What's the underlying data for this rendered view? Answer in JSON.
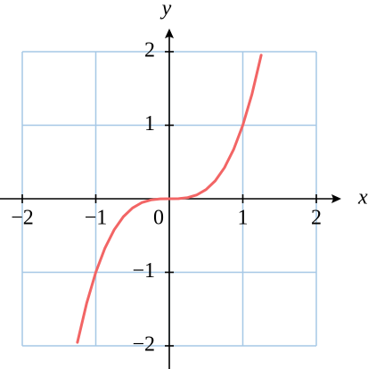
{
  "chart_data": {
    "type": "line",
    "xlabel": "x",
    "ylabel": "y",
    "xlim": [
      -2,
      2
    ],
    "ylim": [
      -2,
      2
    ],
    "xticks": [
      {
        "value": -2,
        "label": "−2"
      },
      {
        "value": -1,
        "label": "−1"
      },
      0,
      1,
      2
    ],
    "yticks": [
      {
        "value": -2,
        "label": "−2"
      },
      {
        "value": -1,
        "label": "−1"
      },
      1,
      2
    ],
    "grid": true,
    "x": [
      -1.25,
      -1.125,
      -1,
      -0.875,
      -0.75,
      -0.625,
      -0.5,
      -0.375,
      -0.25,
      -0.125,
      0,
      0.125,
      0.25,
      0.375,
      0.5,
      0.625,
      0.75,
      0.875,
      1,
      1.125,
      1.25
    ],
    "series": [
      {
        "color": "#f26565",
        "values": [
          -1.953,
          -1.424,
          -1,
          -0.67,
          -0.422,
          -0.244,
          -0.125,
          -0.053,
          -0.016,
          -0.002,
          0,
          0.002,
          0.016,
          0.053,
          0.125,
          0.244,
          0.422,
          0.67,
          1,
          1.424,
          1.953
        ]
      }
    ]
  }
}
